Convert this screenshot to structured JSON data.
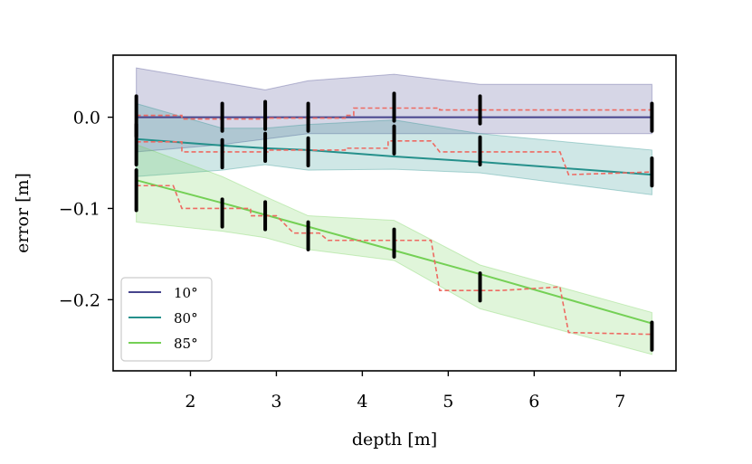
{
  "chart_data": {
    "type": "line",
    "title": "",
    "xlabel": "depth [m]",
    "ylabel": "error [m]",
    "xlim": [
      1.1,
      7.65
    ],
    "ylim": [
      -0.278,
      0.068
    ],
    "xticks": [
      2,
      3,
      4,
      5,
      6,
      7
    ],
    "xtick_labels": [
      "2",
      "3",
      "4",
      "5",
      "6",
      "7"
    ],
    "yticks": [
      0.0,
      -0.1,
      -0.2
    ],
    "ytick_labels": [
      "0.0",
      "−0.1",
      "−0.2"
    ],
    "grid": false,
    "legend_position": "lower-left",
    "depths": [
      1.37,
      2.37,
      2.87,
      3.37,
      4.37,
      5.37,
      7.37
    ],
    "series": [
      {
        "name": "10°",
        "color": "#46448c",
        "fit": [
          0.0,
          0.0,
          0.0,
          0.0,
          0.0,
          0.0,
          0.0
        ],
        "band_upper": [
          0.054,
          0.038,
          0.03,
          0.04,
          0.047,
          0.036,
          0.036
        ],
        "band_lower": [
          -0.038,
          -0.03,
          -0.024,
          -0.018,
          -0.018,
          -0.018,
          -0.018
        ],
        "measured_steps": [
          [
            1.37,
            0.002
          ],
          [
            1.9,
            0.002
          ],
          [
            1.9,
            -0.002
          ],
          [
            2.9,
            -0.002
          ],
          [
            2.9,
            -0.001
          ],
          [
            3.8,
            -0.001
          ],
          [
            3.8,
            0.002
          ],
          [
            3.9,
            0.002
          ],
          [
            3.9,
            0.01
          ],
          [
            4.9,
            0.01
          ],
          [
            4.9,
            0.008
          ],
          [
            7.37,
            0.008
          ]
        ],
        "samples": [
          0.001,
          0.0,
          0.002,
          0.0,
          0.011,
          0.008,
          0.0
        ]
      },
      {
        "name": "80°",
        "color": "#25908b",
        "fit": [
          -0.024,
          -0.031,
          -0.034,
          -0.036,
          -0.043,
          -0.049,
          -0.063
        ],
        "band_upper": [
          0.015,
          -0.012,
          -0.012,
          -0.008,
          -0.003,
          -0.018,
          -0.036
        ],
        "band_lower": [
          -0.065,
          -0.058,
          -0.052,
          -0.058,
          -0.057,
          -0.061,
          -0.085
        ],
        "measured_steps": [
          [
            1.37,
            -0.027
          ],
          [
            1.9,
            -0.027
          ],
          [
            1.9,
            -0.038
          ],
          [
            2.9,
            -0.038
          ],
          [
            2.9,
            -0.036
          ],
          [
            3.8,
            -0.036
          ],
          [
            3.8,
            -0.034
          ],
          [
            4.3,
            -0.034
          ],
          [
            4.3,
            -0.026
          ],
          [
            4.8,
            -0.026
          ],
          [
            4.9,
            -0.038
          ],
          [
            5.4,
            -0.038
          ],
          [
            6.3,
            -0.038
          ],
          [
            6.4,
            -0.063
          ],
          [
            7.37,
            -0.06
          ]
        ],
        "samples": [
          -0.03,
          -0.04,
          -0.033,
          -0.038,
          -0.025,
          -0.037,
          -0.06
        ]
      },
      {
        "name": "85°",
        "color": "#74d055",
        "fit": [
          -0.069,
          -0.094,
          -0.107,
          -0.12,
          -0.146,
          -0.172,
          -0.226
        ],
        "band_upper": [
          -0.03,
          -0.065,
          -0.087,
          -0.108,
          -0.113,
          -0.162,
          -0.214
        ],
        "band_lower": [
          -0.115,
          -0.125,
          -0.132,
          -0.145,
          -0.157,
          -0.21,
          -0.26
        ],
        "measured_steps": [
          [
            1.37,
            -0.075
          ],
          [
            1.8,
            -0.075
          ],
          [
            1.9,
            -0.1
          ],
          [
            2.7,
            -0.1
          ],
          [
            2.7,
            -0.108
          ],
          [
            3.0,
            -0.108
          ],
          [
            3.2,
            -0.127
          ],
          [
            3.5,
            -0.127
          ],
          [
            3.6,
            -0.135
          ],
          [
            4.8,
            -0.135
          ],
          [
            4.9,
            -0.19
          ],
          [
            5.6,
            -0.19
          ],
          [
            6.3,
            -0.186
          ],
          [
            6.4,
            -0.236
          ],
          [
            7.37,
            -0.238
          ]
        ],
        "samples": [
          -0.08,
          -0.105,
          -0.108,
          -0.13,
          -0.138,
          -0.186,
          -0.24
        ]
      }
    ],
    "measured_line_color": "#ee6a62",
    "sample_color": "#000000"
  }
}
